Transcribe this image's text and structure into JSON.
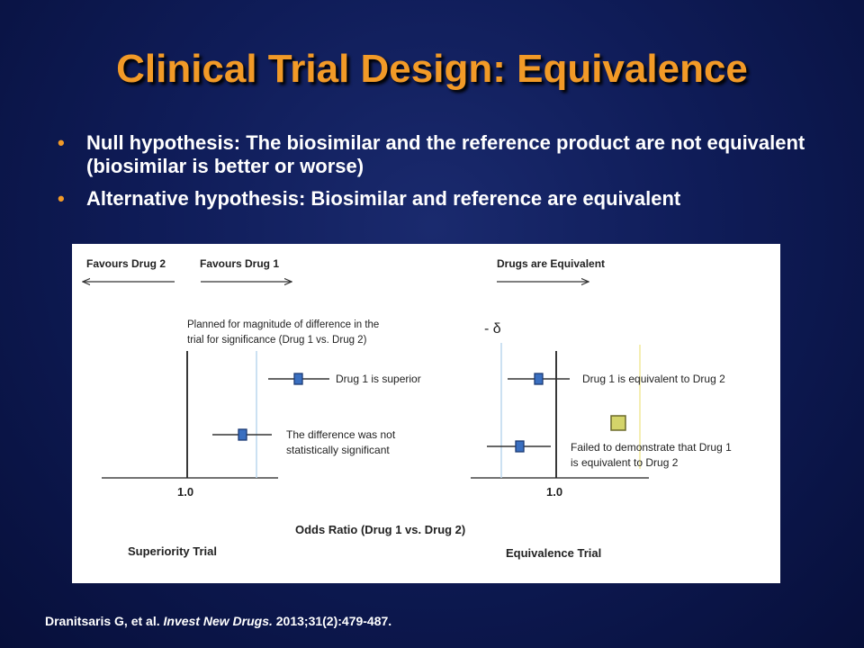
{
  "slide": {
    "title": "Clinical Trial Design: Equivalence",
    "bullet_marker": "•",
    "bullets": [
      "Null hypothesis: The biosimilar and the reference product are not equivalent (biosimilar is better or worse)",
      "Alternative hypothesis: Biosimilar and reference are equivalent"
    ],
    "citation": {
      "authors": "Dranitsaris G, et al. ",
      "journal": "Invest New Drugs.",
      "details": " 2013;31(2):479-487."
    }
  },
  "figure": {
    "header_left": "Favours Drug 2",
    "header_middle": "Favours Drug 1",
    "header_right": "Drugs are Equivalent",
    "note_line1": "Planned for magnitude of difference in the",
    "note_line2": "trial for significance (Drug 1 vs. Drug 2)",
    "delta_label": "- δ",
    "sup_label1": "Drug 1 is superior",
    "sup_label2_line1": "The difference was not",
    "sup_label2_line2": "statistically  significant",
    "eq_label1": "Drug 1 is equivalent  to Drug 2",
    "eq_label2_line1": "Failed to demonstrate  that Drug 1",
    "eq_label2_line2": "is equivalent  to Drug 2",
    "tick_left": "1.0",
    "tick_right": "1.0",
    "axis_label": "Odds Ratio (Drug 1 vs. Drug 2)",
    "panel_left": "Superiority Trial",
    "panel_right": "Equivalence Trial",
    "colors": {
      "marker_fill": "#3a6fc0",
      "marker_stroke": "#1b3a73",
      "threshold_line": "#bcd7ee",
      "overlay_square": "#d4d46a",
      "overlay_line": "#f2e89a"
    }
  }
}
